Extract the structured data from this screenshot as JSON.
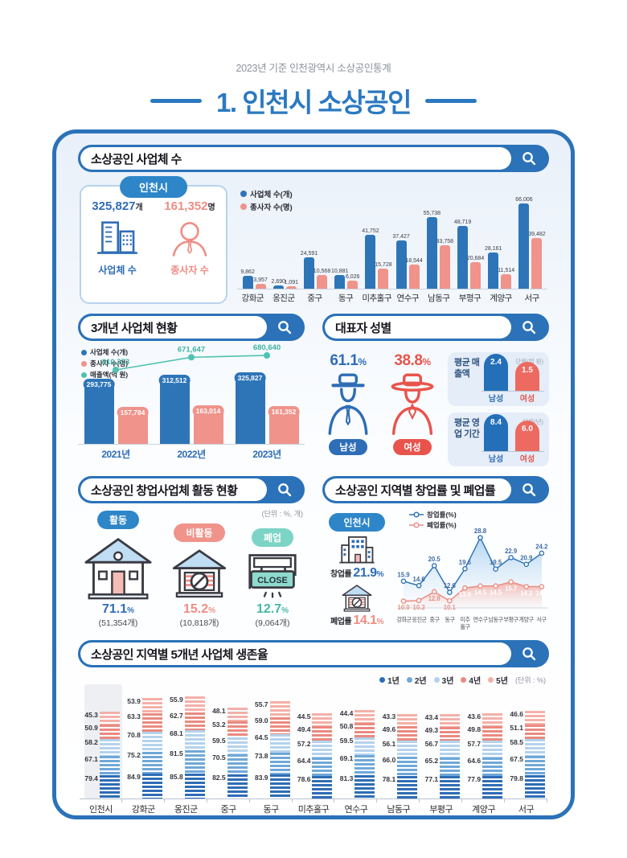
{
  "page": {
    "subtitle": "2023년 기준 인천광역시 소상공인통계",
    "title": "1. 인천시 소상공인"
  },
  "sections": {
    "s1": {
      "header": "소상공인 사업체 수"
    },
    "s2": {
      "header": "3개년 사업체 현황"
    },
    "s3": {
      "header": "대표자 성별"
    },
    "s4": {
      "header": "소상공인 창업사업체 활동 현황",
      "unit_note": "(단위 : %, 개)"
    },
    "s5": {
      "header": "소상공인 지역별 창업률 및 폐업률"
    },
    "s6": {
      "header": "소상공인 지역별 5개년 사업체 생존율",
      "unit_note": "(단위 : %)"
    }
  },
  "colors": {
    "primary_blue": "#2b72b8",
    "bar_blue": "#2e75b8",
    "salmon": "#f0938b",
    "teal_line": "#50c2b2",
    "red": "#e8544c",
    "badge_blue": "#2e86c9",
    "teal_badge": "#7cd4c6"
  },
  "chart_data": [
    {
      "id": "district_businesses",
      "type": "bar",
      "title": "소상공인 사업체 수",
      "region_badge": "인천시",
      "incheon_card": {
        "businesses_value": "325,827",
        "businesses_unit": "개",
        "businesses_label": "사업체 수",
        "workers_value": "161,352",
        "workers_unit": "명",
        "workers_label": "종사자 수"
      },
      "categories": [
        "강화군",
        "옹진군",
        "중구",
        "동구",
        "미추홀구",
        "연수구",
        "남동구",
        "부평구",
        "계양구",
        "서구"
      ],
      "series": [
        {
          "name": "사업체 수(개)",
          "color": "#2e75b8",
          "values": [
            9862,
            2690,
            24591,
            10881,
            41752,
            37427,
            55738,
            48719,
            28161,
            66006
          ],
          "labels": [
            "9,862",
            "2,690",
            "24,591",
            "10,881",
            "41,752",
            "37,427",
            "55,738",
            "48,719",
            "28,161",
            "66,006"
          ]
        },
        {
          "name": "종사자 수(명)",
          "color": "#f0938b",
          "values": [
            3957,
            1091,
            10568,
            6026,
            15728,
            18544,
            33758,
            20684,
            11514,
            39482
          ],
          "labels": [
            "3,957",
            "1,091",
            "10,568",
            "6,026",
            "15,728",
            "18,544",
            "33,758",
            "20,684",
            "11,514",
            "39,482"
          ]
        }
      ]
    },
    {
      "id": "three_year_trend",
      "type": "bar",
      "title": "3개년 사업체 현황",
      "categories": [
        "2021년",
        "2022년",
        "2023년"
      ],
      "series": [
        {
          "name": "사업체 수(개)",
          "color": "#2e75b8",
          "values": [
            293775,
            312512,
            325827
          ],
          "labels": [
            "293,775",
            "312,512",
            "325,827"
          ]
        },
        {
          "name": "종사자 수(명)",
          "color": "#f0938b",
          "values": [
            157784,
            163014,
            161352
          ],
          "labels": [
            "157,784",
            "163,014",
            "161,352"
          ]
        }
      ],
      "line": {
        "name": "매출액(억 원)",
        "color": "#50c2b2",
        "values": [
          610273,
          671647,
          680640
        ],
        "labels": [
          "610,273",
          "671,647",
          "680,640"
        ]
      }
    },
    {
      "id": "owner_gender",
      "type": "bar",
      "title": "대표자 성별",
      "male_pct": "61.1",
      "female_pct": "38.8",
      "pct_unit": "%",
      "male_label": "남성",
      "female_label": "여성",
      "panels": [
        {
          "label": "평균 매출액",
          "unit": "단위(억 원)",
          "male": 2.4,
          "female": 1.5,
          "male_txt": "2.4",
          "female_txt": "1.5"
        },
        {
          "label": "평균 영업 기간",
          "unit": "단위(년)",
          "male": 8.4,
          "female": 6.0,
          "male_txt": "8.4",
          "female_txt": "6.0"
        }
      ]
    },
    {
      "id": "startup_activity",
      "type": "pie",
      "title": "소상공인 창업사업체 활동 현황",
      "unit_note": "(단위 : %, 개)",
      "items": [
        {
          "badge": "활동",
          "pct": "71.1",
          "pct_unit": "%",
          "count": "(51,354개)",
          "color": "#2f6db6"
        },
        {
          "badge": "비활동",
          "pct": "15.2",
          "pct_unit": "%",
          "count": "(10,818개)",
          "color": "#ef8d84"
        },
        {
          "badge": "폐업",
          "pct": "12.7",
          "pct_unit": "%",
          "count": "(9,064개)",
          "color": "#45b8a9"
        }
      ]
    },
    {
      "id": "open_close_rate",
      "type": "line",
      "title": "소상공인 지역별 창업률 및 폐업률",
      "incheon": {
        "badge": "인천시",
        "open_label": "창업률",
        "open_value": "21.9",
        "close_label": "폐업률",
        "close_value": "14.1",
        "unit": "%"
      },
      "categories": [
        "강화군",
        "옹진군",
        "중구",
        "동구",
        "미추홀구",
        "연수구",
        "남동구",
        "부평구",
        "계양구",
        "서구"
      ],
      "series": [
        {
          "name": "창업률(%)",
          "color": "#2e75b8",
          "values": [
            15.9,
            14.6,
            20.5,
            12.6,
            19.6,
            28.8,
            19.5,
            22.9,
            20.9,
            24.2
          ]
        },
        {
          "name": "폐업률(%)",
          "color": "#ec8d83",
          "values": [
            10.0,
            10.2,
            12.8,
            10.1,
            13.9,
            14.5,
            14.5,
            15.7,
            14.3,
            14.3
          ]
        }
      ]
    },
    {
      "id": "five_year_survival",
      "type": "bar",
      "title": "소상공인 지역별 5개년 사업체 생존율",
      "unit_note": "(단위 : %)",
      "highlight_category": "인천시",
      "categories": [
        "인천시",
        "강화군",
        "옹진군",
        "중구",
        "동구",
        "미추홀구",
        "연수구",
        "남동구",
        "부평구",
        "계양구",
        "서구"
      ],
      "legend": [
        {
          "name": "1년",
          "color": "#2e6db5"
        },
        {
          "name": "2년",
          "color": "#6fa8d9"
        },
        {
          "name": "3년",
          "color": "#b4d2ec"
        },
        {
          "name": "4년",
          "color": "#ea8a80"
        },
        {
          "name": "5년",
          "color": "#f4b0a8"
        }
      ],
      "series": [
        {
          "name": "1년",
          "values": [
            79.4,
            84.9,
            85.8,
            82.5,
            83.9,
            78.6,
            81.3,
            78.1,
            77.1,
            77.9,
            79.8
          ]
        },
        {
          "name": "2년",
          "values": [
            67.1,
            75.2,
            81.5,
            70.5,
            73.8,
            64.4,
            69.1,
            66.0,
            65.2,
            64.6,
            67.5
          ]
        },
        {
          "name": "3년",
          "values": [
            58.2,
            70.8,
            68.1,
            59.5,
            64.5,
            57.2,
            59.5,
            56.1,
            56.7,
            57.7,
            58.5
          ]
        },
        {
          "name": "4년",
          "values": [
            50.9,
            63.3,
            62.7,
            53.2,
            59.0,
            49.4,
            50.8,
            49.6,
            49.3,
            49.8,
            51.1
          ]
        },
        {
          "name": "5년",
          "values": [
            45.3,
            53.9,
            55.9,
            48.1,
            55.7,
            44.5,
            44.4,
            43.3,
            43.4,
            43.6,
            46.6
          ]
        }
      ]
    }
  ]
}
